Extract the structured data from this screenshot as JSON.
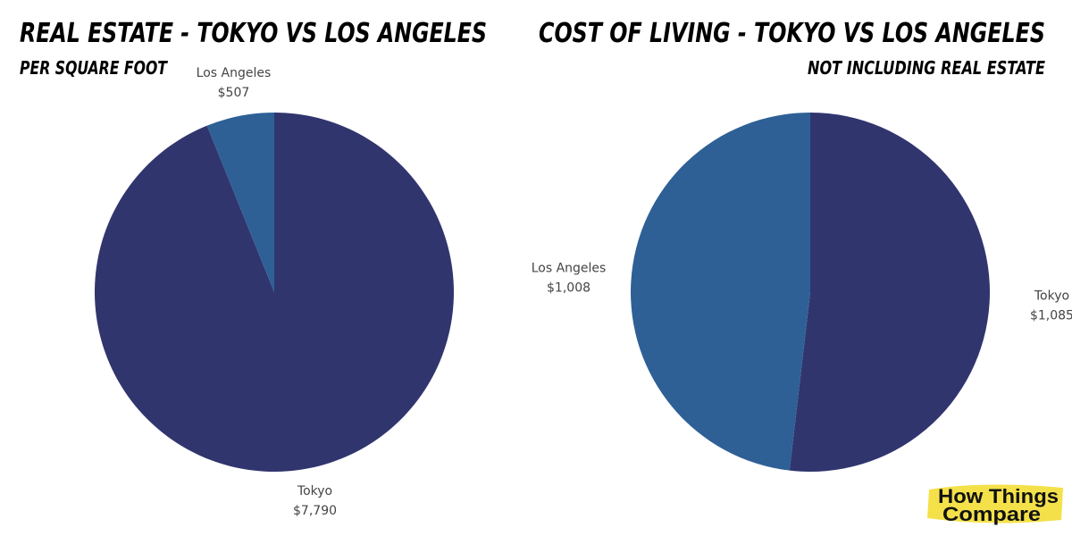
{
  "chart_data": [
    {
      "type": "pie",
      "title": "REAL ESTATE - TOKYO VS LOS ANGELES",
      "subtitle": "PER SQUARE FOOT",
      "categories": [
        "Tokyo",
        "Los Angeles"
      ],
      "values": [
        7790,
        507
      ],
      "value_labels": [
        "$7,790",
        "$507"
      ],
      "colors": [
        "#31356e",
        "#2e6096"
      ]
    },
    {
      "type": "pie",
      "title": "COST OF LIVING - TOKYO VS LOS ANGELES",
      "subtitle": "NOT INCLUDING REAL ESTATE",
      "categories": [
        "Tokyo",
        "Los Angeles"
      ],
      "values": [
        1085,
        1008
      ],
      "value_labels": [
        "$1,085",
        "$1,008"
      ],
      "colors": [
        "#31356e",
        "#2e6096"
      ]
    }
  ],
  "logo": {
    "line1": "How Things",
    "line2": "Compare"
  }
}
